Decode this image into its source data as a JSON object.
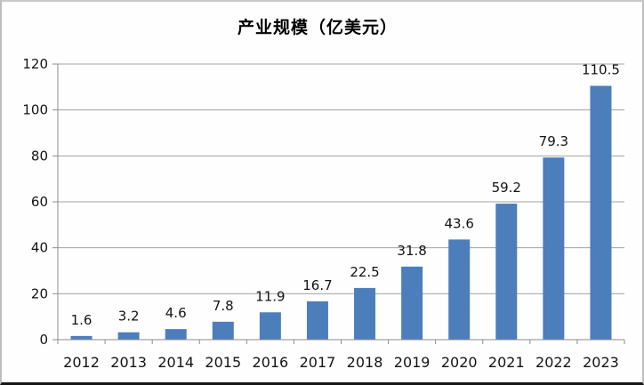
{
  "chart_data": {
    "type": "bar",
    "title": "产业规模（亿美元）",
    "categories": [
      "2012",
      "2013",
      "2014",
      "2015",
      "2016",
      "2017",
      "2018",
      "2019",
      "2020",
      "2021",
      "2022",
      "2023"
    ],
    "values": [
      1.6,
      3.2,
      4.6,
      7.8,
      11.9,
      16.7,
      22.5,
      31.8,
      43.6,
      59.2,
      79.3,
      110.5
    ],
    "value_labels": [
      "1.6",
      "3.2",
      "4.6",
      "7.8",
      "11.9",
      "16.7",
      "22.5",
      "31.8",
      "43.6",
      "59.2",
      "79.3",
      "110.5"
    ],
    "xlabel": "",
    "ylabel": "",
    "ylim": [
      0,
      120
    ],
    "yticks": [
      0,
      20,
      40,
      60,
      80,
      100,
      120
    ],
    "grid": true,
    "legend": "none",
    "bar_color": "#4d7ebc",
    "grid_color": "#a2a2a2",
    "axis_color": "#8c8c8c",
    "text_color": "#141414"
  }
}
